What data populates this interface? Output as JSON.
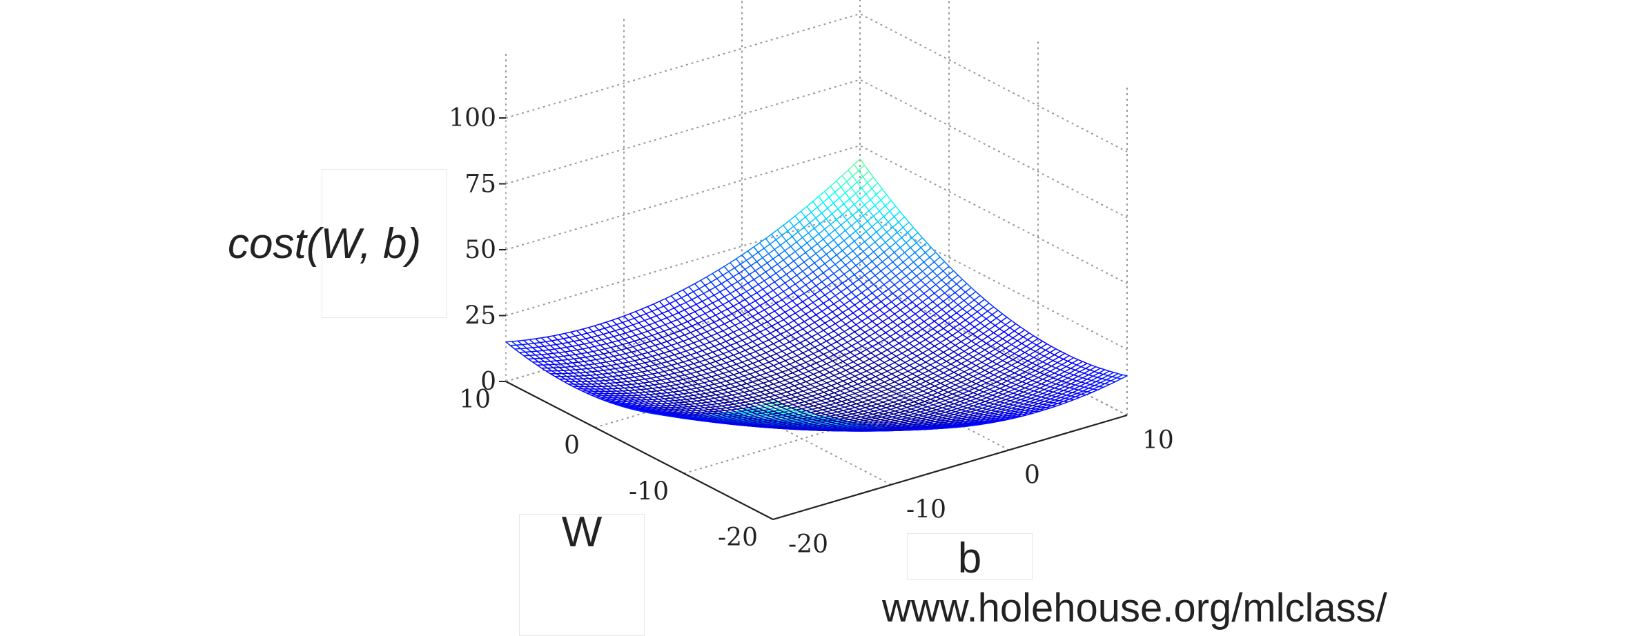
{
  "chart_data": {
    "type": "surface",
    "title": "",
    "zlabel": "cost(W, b)",
    "xlabel": "W",
    "ylabel": "b",
    "z_ticks": [
      "0",
      "25",
      "50",
      "75",
      "100"
    ],
    "w_ticks": [
      "10",
      "0",
      "-10",
      "-20"
    ],
    "b_ticks": [
      "-20",
      "-10",
      "0",
      "10"
    ],
    "zlim": [
      0,
      100
    ],
    "wlim": [
      -20,
      10
    ],
    "blim": [
      -20,
      10
    ],
    "colormap": "jet",
    "grid": true,
    "surface": "convex bowl, minimum near W=-5, b=-5"
  },
  "source": "www.holehouse.org/mlclass/"
}
